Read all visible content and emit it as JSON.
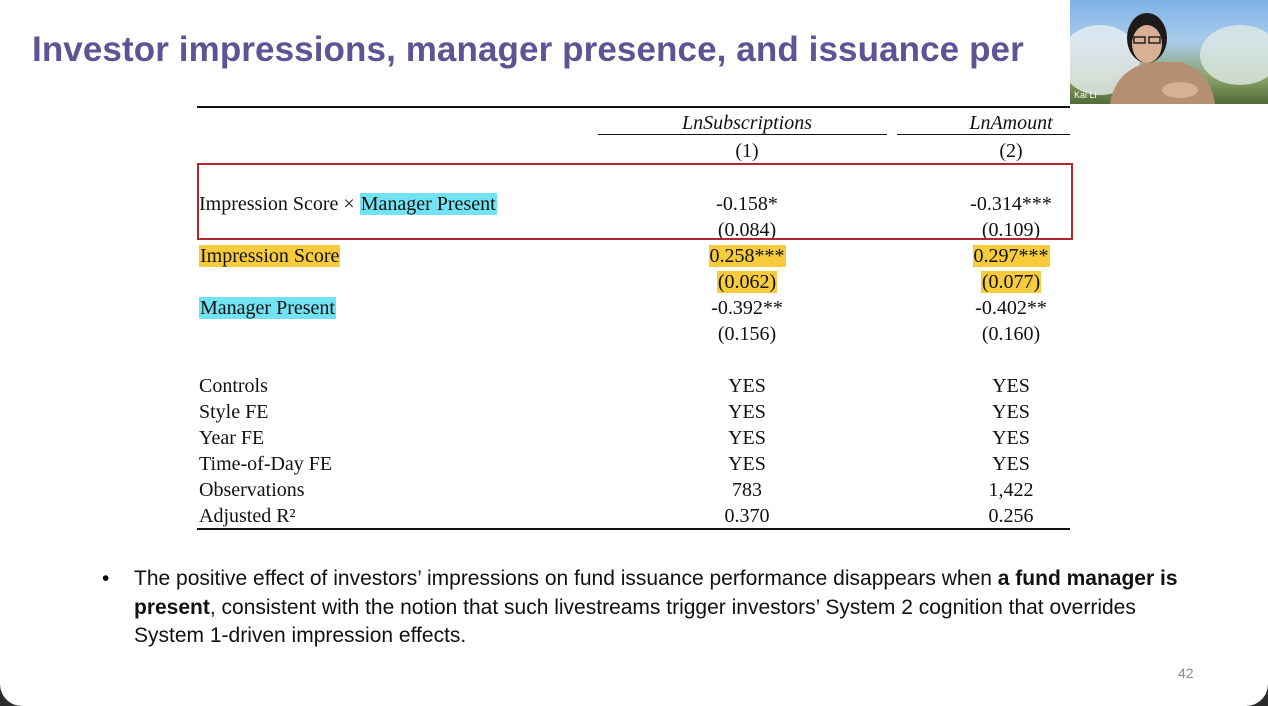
{
  "header": {
    "title": "Investor impressions, manager presence, and issuance per",
    "page_number": "42"
  },
  "webcam": {
    "name": "Kai Li"
  },
  "table": {
    "columns": [
      {
        "name": "LnSubscriptions",
        "number": "(1)"
      },
      {
        "name": "LnAmount",
        "number": "(2)"
      }
    ],
    "rows": [
      {
        "label": [
          {
            "text": "Impression Score × "
          },
          {
            "text": "Manager Present",
            "highlight": "#72e3f2"
          }
        ],
        "cells": [
          "-0.158*",
          "-0.314***"
        ]
      },
      {
        "label": [],
        "cells": [
          "(0.084)",
          "(0.109)"
        ]
      },
      {
        "label": [
          {
            "text": "Impression Score",
            "highlight": "#f6cb3c"
          }
        ],
        "cells": [
          "0.258***",
          "0.297***"
        ],
        "cell_highlight": "#f6cb3c"
      },
      {
        "label": [],
        "cells": [
          "(0.062)",
          "(0.077)"
        ],
        "cell_highlight": "#f6cb3c"
      },
      {
        "label": [
          {
            "text": "Manager Present",
            "highlight": "#72e3f2"
          }
        ],
        "cells": [
          "-0.392**",
          "-0.402**"
        ]
      },
      {
        "label": [],
        "cells": [
          "(0.156)",
          "(0.160)"
        ]
      },
      {
        "label": [
          {
            "text": "Controls"
          }
        ],
        "cells": [
          "YES",
          "YES"
        ]
      },
      {
        "label": [
          {
            "text": "Style FE"
          }
        ],
        "cells": [
          "YES",
          "YES"
        ]
      },
      {
        "label": [
          {
            "text": "Year FE"
          }
        ],
        "cells": [
          "YES",
          "YES"
        ]
      },
      {
        "label": [
          {
            "text": "Time-of-Day FE"
          }
        ],
        "cells": [
          "YES",
          "YES"
        ]
      },
      {
        "label": [
          {
            "text": "Observations"
          }
        ],
        "cells": [
          "783",
          "1,422"
        ]
      },
      {
        "label": [
          {
            "text": "Adjusted R²"
          }
        ],
        "cells": [
          "0.370",
          "0.256"
        ]
      }
    ]
  },
  "bullet": {
    "parts": [
      {
        "text": "The positive effect of investors’ impressions on fund issuance performance disappears when "
      },
      {
        "text": "a fund manager is present",
        "bold": true
      },
      {
        "text": ", consistent with the notion that such livestreams trigger investors’ System 2 cognition that overrides System 1-driven impression effects."
      }
    ]
  }
}
